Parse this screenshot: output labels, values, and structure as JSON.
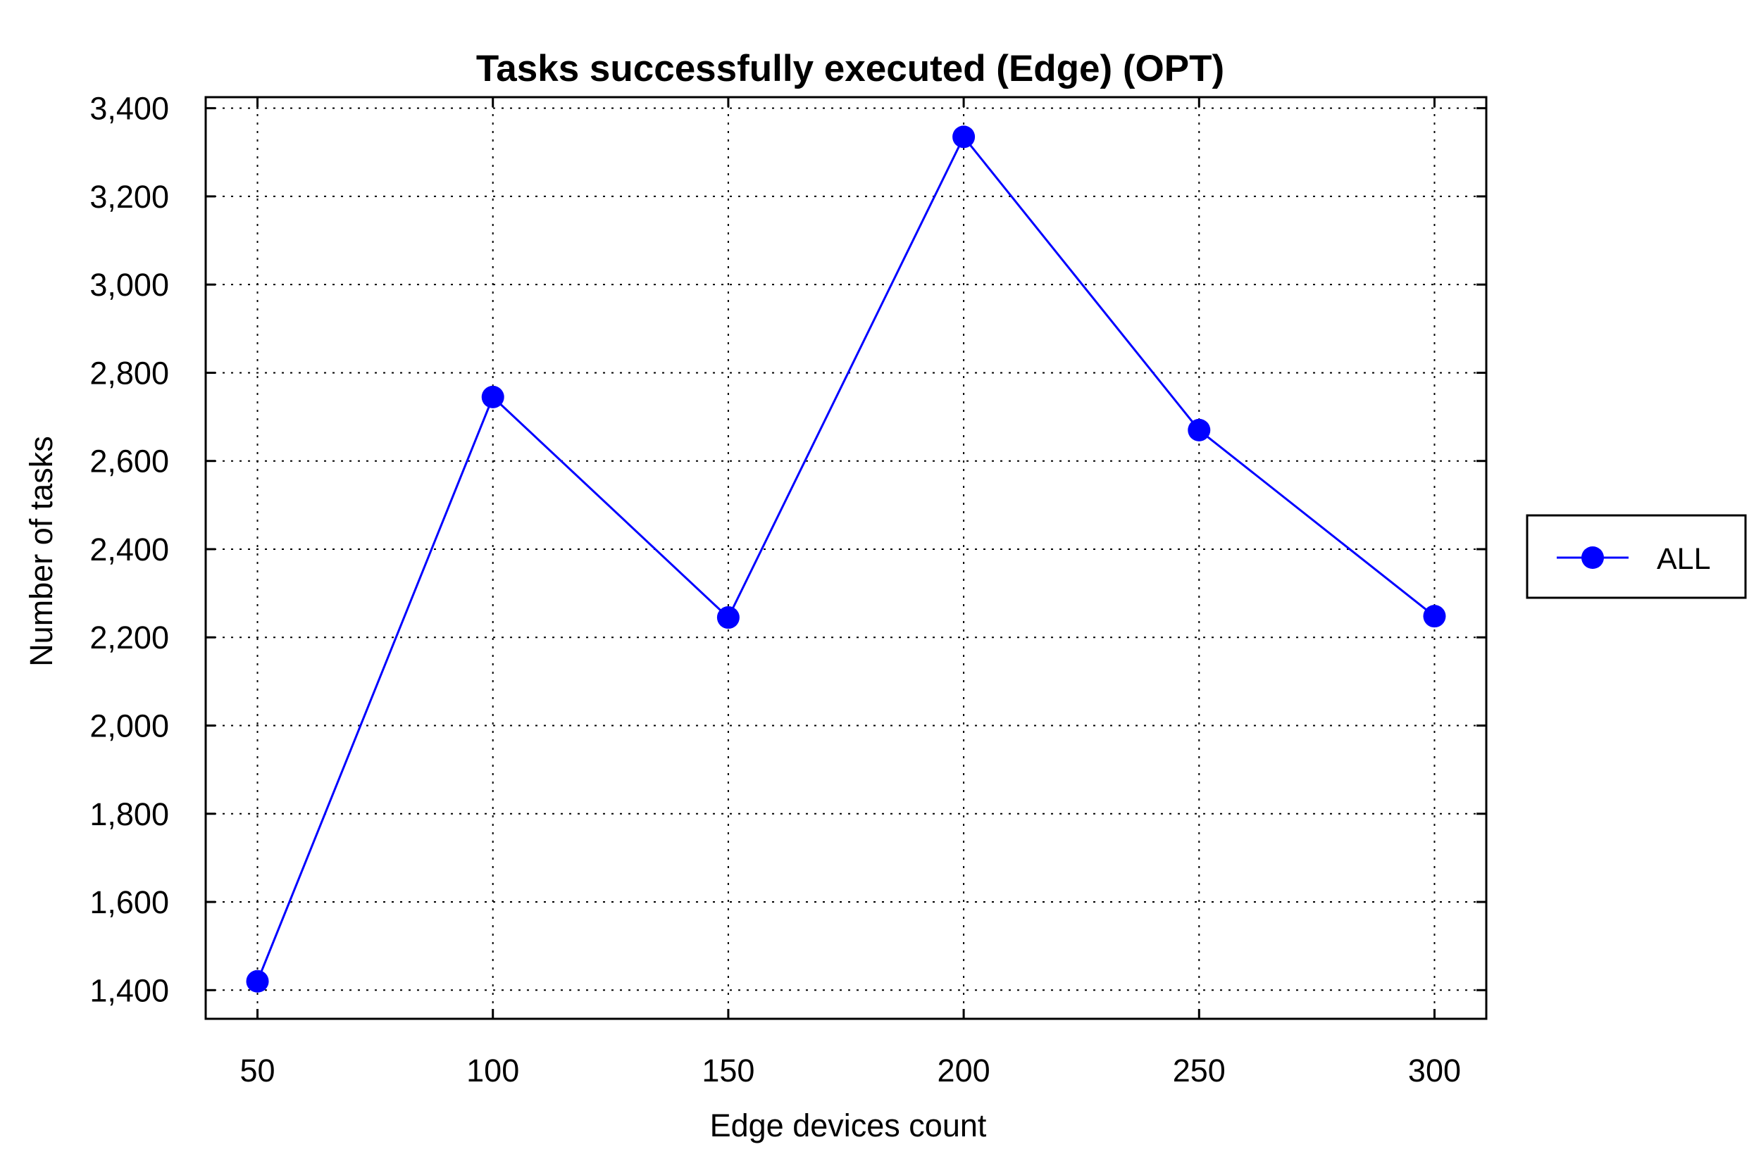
{
  "chart_data": {
    "type": "line",
    "title": "Tasks successfully executed (Edge) (OPT)",
    "xlabel": "Edge devices count",
    "ylabel": "Number of tasks",
    "x": [
      50,
      100,
      150,
      200,
      250,
      300
    ],
    "x_tick_labels": [
      "50",
      "100",
      "150",
      "200",
      "250",
      "300"
    ],
    "y_ticks": [
      1400,
      1600,
      1800,
      2000,
      2200,
      2400,
      2600,
      2800,
      3000,
      3200,
      3400
    ],
    "y_tick_labels": [
      "1,400",
      "1,600",
      "1,800",
      "2,000",
      "2,200",
      "2,400",
      "2,600",
      "2,800",
      "3,000",
      "3,200",
      "3,400"
    ],
    "xlim": [
      39,
      311
    ],
    "ylim": [
      1335,
      3425
    ],
    "grid": true,
    "legend_position": "right",
    "series": [
      {
        "name": "ALL",
        "color": "#0000ff",
        "marker": "circle",
        "values": [
          1420,
          2745,
          2245,
          3335,
          2670,
          2248
        ]
      }
    ]
  }
}
